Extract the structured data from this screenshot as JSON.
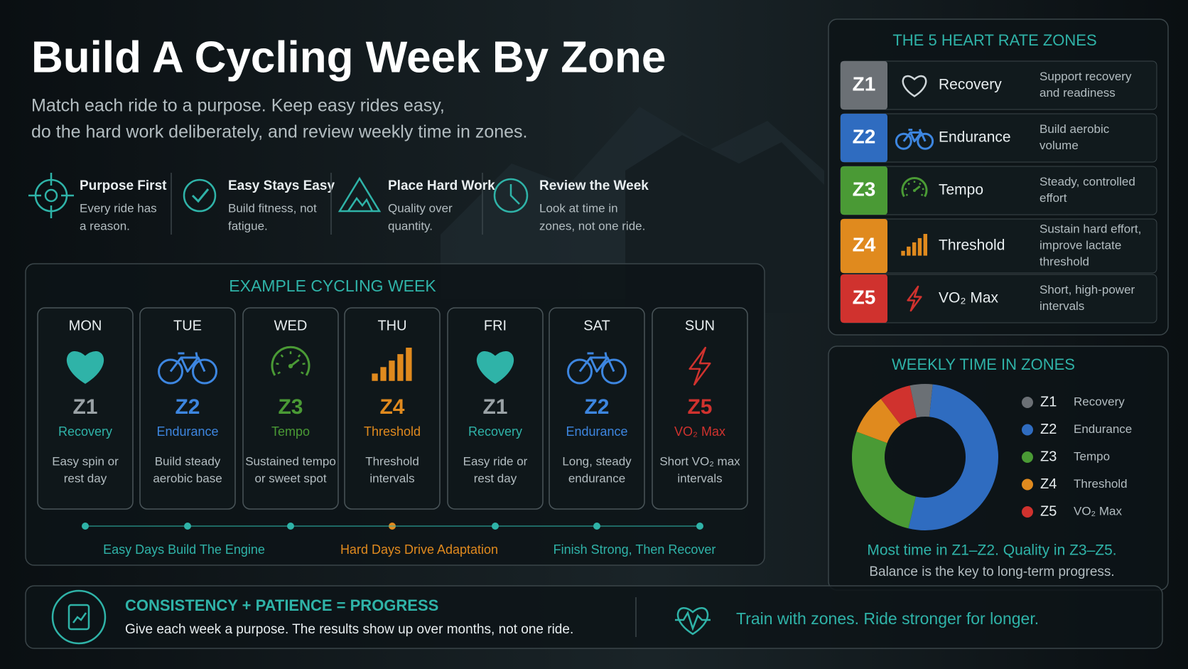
{
  "header": {
    "title": "Build A Cycling Week By Zone",
    "subtitle": [
      "Match each ride to a purpose. Keep easy rides easy,",
      "do the hard work deliberately, and review weekly time in zones."
    ]
  },
  "principles": [
    {
      "title": "Purpose First",
      "text": [
        "Every ride has",
        "a reason."
      ]
    },
    {
      "title": "Easy Stays Easy",
      "text": [
        "Build fitness, not",
        "fatigue."
      ]
    },
    {
      "title": "Place Hard Work",
      "text": [
        "Quality over",
        "quantity."
      ]
    },
    {
      "title": "Review the Week",
      "text": [
        "Look at time in",
        "zones, not one ride."
      ]
    }
  ],
  "week": {
    "title": "EXAMPLE CYCLING WEEK",
    "days": [
      {
        "day": "MON",
        "zone": "Z1",
        "name": "Recovery",
        "desc": [
          "Easy spin or",
          "rest day"
        ]
      },
      {
        "day": "TUE",
        "zone": "Z2",
        "name": "Endurance",
        "desc": [
          "Build steady",
          "aerobic base"
        ]
      },
      {
        "day": "WED",
        "zone": "Z3",
        "name": "Tempo",
        "desc": [
          "Sustained tempo",
          "or sweet spot"
        ]
      },
      {
        "day": "THU",
        "zone": "Z4",
        "name": "Threshold",
        "desc": [
          "Threshold",
          "intervals"
        ]
      },
      {
        "day": "FRI",
        "zone": "Z1",
        "name": "Recovery",
        "desc": [
          "Easy ride or",
          "rest day"
        ]
      },
      {
        "day": "SAT",
        "zone": "Z2",
        "name": "Endurance",
        "desc": [
          "Long, steady",
          "endurance"
        ]
      },
      {
        "day": "SUN",
        "zone": "Z5",
        "name": "VO₂ Max",
        "desc": [
          "Short VO₂ max",
          "intervals"
        ]
      }
    ],
    "footer": [
      "Easy Days Build The Engine",
      "Hard Days Drive Adaptation",
      "Finish Strong, Then Recover"
    ]
  },
  "zones": {
    "title": "THE 5 HEART RATE ZONES",
    "rows": [
      {
        "code": "Z1",
        "name": "Recovery",
        "desc": [
          "Support recovery",
          "and readiness"
        ],
        "color": "#6b7075"
      },
      {
        "code": "Z2",
        "name": "Endurance",
        "desc": [
          "Build aerobic",
          "volume"
        ],
        "color": "#2f6cc0"
      },
      {
        "code": "Z3",
        "name": "Tempo",
        "desc": [
          "Steady, controlled",
          "effort"
        ],
        "color": "#4a9a35"
      },
      {
        "code": "Z4",
        "name": "Threshold",
        "desc": [
          "Sustain hard effort,",
          "improve lactate",
          "threshold"
        ],
        "color": "#e08a1e"
      },
      {
        "code": "Z5",
        "name": "VO₂ Max",
        "desc": [
          "Short, high-power",
          "intervals"
        ],
        "color": "#d0322e"
      }
    ]
  },
  "time_in_zones": {
    "type": "donut",
    "title": "WEEKLY TIME IN ZONES",
    "values": [
      5,
      52,
      27,
      9,
      7
    ],
    "note": "Most time in Z1–Z2. Quality in Z3–Z5.",
    "caption": "Balance is the key to long-term progress."
  },
  "bottom": {
    "title": "CONSISTENCY + PATIENCE = PROGRESS",
    "text": "Give each week a purpose. The results show up over months, not one ride.",
    "tagline": "Train with zones. Ride stronger for longer."
  }
}
